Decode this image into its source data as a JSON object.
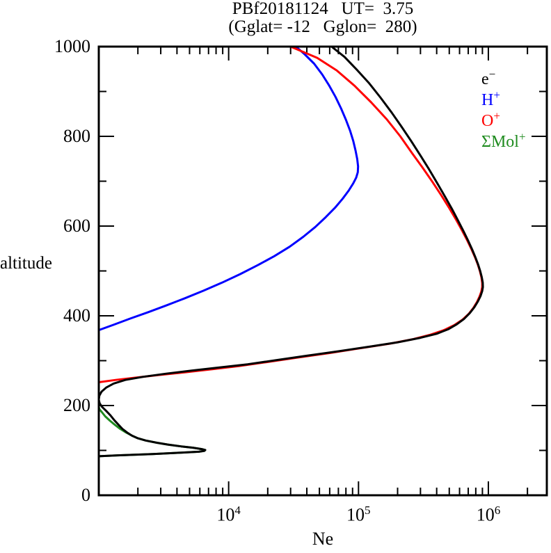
{
  "chart_data": {
    "type": "line",
    "title": "PBf20181124   UT=  3.75",
    "subtitle": "(Gglat= -12   Gglon=  280)",
    "xlabel": "Ne",
    "ylabel": "altitude",
    "x_scale": "log",
    "xlim": [
      1000,
      2820000
    ],
    "ylim": [
      0,
      1000
    ],
    "grid": false,
    "legend_position": "upper-right-inside",
    "x_ticks": [
      {
        "base": "10",
        "exp": "4",
        "value": 10000
      },
      {
        "base": "10",
        "exp": "5",
        "value": 100000
      },
      {
        "base": "10",
        "exp": "6",
        "value": 1000000
      }
    ],
    "y_major_ticks": [
      0,
      200,
      400,
      600,
      800,
      1000
    ],
    "y_minor_step": 100,
    "legend": [
      {
        "base": "e",
        "sup": "−",
        "color": "#000000"
      },
      {
        "base": "H",
        "sup": "+",
        "color": "#0000ff"
      },
      {
        "base": "O",
        "sup": "+",
        "color": "#ff0000"
      },
      {
        "base": "ΣMol",
        "sup": "+",
        "color": "#1f8b1f"
      }
    ],
    "series": [
      {
        "name": "H+",
        "color": "#0000ff",
        "points": [
          [
            1000,
            368
          ],
          [
            1300,
            380
          ],
          [
            1750,
            394
          ],
          [
            2400,
            408
          ],
          [
            3300,
            423
          ],
          [
            4600,
            439
          ],
          [
            6400,
            456
          ],
          [
            8900,
            474
          ],
          [
            12300,
            493
          ],
          [
            16800,
            513
          ],
          [
            22500,
            533
          ],
          [
            29500,
            554
          ],
          [
            37500,
            576
          ],
          [
            46500,
            598
          ],
          [
            56000,
            620
          ],
          [
            66000,
            641
          ],
          [
            75500,
            661
          ],
          [
            84000,
            679
          ],
          [
            91000,
            695
          ],
          [
            96000,
            708
          ],
          [
            98800,
            720
          ],
          [
            99300,
            733
          ],
          [
            97800,
            749
          ],
          [
            95000,
            768
          ],
          [
            91000,
            790
          ],
          [
            86000,
            813
          ],
          [
            80000,
            837
          ],
          [
            73500,
            862
          ],
          [
            66500,
            888
          ],
          [
            59500,
            913
          ],
          [
            52500,
            938
          ],
          [
            45500,
            962
          ],
          [
            38500,
            983
          ],
          [
            33000,
            1000
          ]
        ]
      },
      {
        "name": "Mol+",
        "color": "#1f8b1f",
        "points": [
          [
            1000,
            87
          ],
          [
            1400,
            89
          ],
          [
            2600,
            92
          ],
          [
            4300,
            95
          ],
          [
            5900,
            97
          ],
          [
            6500,
            99
          ],
          [
            6600,
            101
          ],
          [
            6200,
            103
          ],
          [
            5300,
            106
          ],
          [
            4300,
            109
          ],
          [
            3400,
            113
          ],
          [
            2800,
            117
          ],
          [
            2300,
            122
          ],
          [
            2000,
            127
          ],
          [
            1800,
            133
          ],
          [
            1620,
            140
          ],
          [
            1460,
            148
          ],
          [
            1330,
            157
          ],
          [
            1220,
            166
          ],
          [
            1120,
            176
          ],
          [
            1050,
            186
          ],
          [
            1010,
            192
          ],
          [
            1000,
            197
          ]
        ]
      },
      {
        "name": "O+",
        "color": "#ff0000",
        "points": [
          [
            1000,
            252
          ],
          [
            1350,
            257
          ],
          [
            1900,
            262
          ],
          [
            2900,
            268
          ],
          [
            4600,
            274
          ],
          [
            7500,
            281
          ],
          [
            12000,
            288
          ],
          [
            20000,
            297
          ],
          [
            34000,
            307
          ],
          [
            60000,
            317
          ],
          [
            105000,
            328
          ],
          [
            175000,
            338
          ],
          [
            265000,
            348
          ],
          [
            360000,
            358
          ],
          [
            455000,
            368
          ],
          [
            545000,
            379
          ],
          [
            630000,
            391
          ],
          [
            705000,
            404
          ],
          [
            765000,
            417
          ],
          [
            815000,
            430
          ],
          [
            855000,
            443
          ],
          [
            882000,
            454
          ],
          [
            897000,
            464
          ],
          [
            897000,
            473
          ],
          [
            885000,
            485
          ],
          [
            862000,
            499
          ],
          [
            830000,
            514
          ],
          [
            790000,
            530
          ],
          [
            742000,
            548
          ],
          [
            688000,
            568
          ],
          [
            628000,
            590
          ],
          [
            565000,
            614
          ],
          [
            500000,
            640
          ],
          [
            435000,
            668
          ],
          [
            372000,
            698
          ],
          [
            312000,
            730
          ],
          [
            258000,
            763
          ],
          [
            210000,
            800
          ],
          [
            165000,
            838
          ],
          [
            125000,
            876
          ],
          [
            93000,
            913
          ],
          [
            68000,
            947
          ],
          [
            48000,
            975
          ],
          [
            30000,
            1000
          ]
        ]
      },
      {
        "name": "e-",
        "color": "#000000",
        "points": [
          [
            1000,
            87
          ],
          [
            1400,
            89
          ],
          [
            2600,
            92
          ],
          [
            4300,
            95
          ],
          [
            5900,
            97
          ],
          [
            6500,
            99
          ],
          [
            6600,
            101
          ],
          [
            6200,
            103
          ],
          [
            5300,
            106
          ],
          [
            4300,
            109
          ],
          [
            3400,
            113
          ],
          [
            2800,
            117
          ],
          [
            2300,
            122
          ],
          [
            2000,
            127
          ],
          [
            1800,
            133
          ],
          [
            1650,
            140
          ],
          [
            1520,
            148
          ],
          [
            1420,
            157
          ],
          [
            1320,
            167
          ],
          [
            1230,
            178
          ],
          [
            1140,
            188
          ],
          [
            1060,
            197
          ],
          [
            1015,
            205
          ],
          [
            1000,
            213
          ],
          [
            1010,
            222
          ],
          [
            1050,
            231
          ],
          [
            1140,
            240
          ],
          [
            1300,
            249
          ],
          [
            1600,
            257
          ],
          [
            2200,
            264
          ],
          [
            3300,
            271
          ],
          [
            5200,
            278
          ],
          [
            8500,
            285
          ],
          [
            14000,
            292
          ],
          [
            23000,
            301
          ],
          [
            40000,
            311
          ],
          [
            70000,
            321
          ],
          [
            120000,
            331
          ],
          [
            200000,
            341
          ],
          [
            300000,
            351
          ],
          [
            400000,
            360
          ],
          [
            490000,
            370
          ],
          [
            570000,
            381
          ],
          [
            650000,
            393
          ],
          [
            720000,
            406
          ],
          [
            780000,
            419
          ],
          [
            830000,
            432
          ],
          [
            870000,
            444
          ],
          [
            897000,
            455
          ],
          [
            908000,
            464
          ],
          [
            905000,
            474
          ],
          [
            890000,
            486
          ],
          [
            865000,
            500
          ],
          [
            832000,
            515
          ],
          [
            795000,
            530
          ],
          [
            750000,
            548
          ],
          [
            700000,
            567
          ],
          [
            645000,
            588
          ],
          [
            585000,
            612
          ],
          [
            525000,
            638
          ],
          [
            465000,
            665
          ],
          [
            405000,
            695
          ],
          [
            350000,
            726
          ],
          [
            300000,
            757
          ],
          [
            255000,
            789
          ],
          [
            215000,
            821
          ],
          [
            180000,
            853
          ],
          [
            148000,
            886
          ],
          [
            121000,
            918
          ],
          [
            96000,
            950
          ],
          [
            78000,
            977
          ],
          [
            62000,
            1000
          ]
        ]
      }
    ]
  }
}
